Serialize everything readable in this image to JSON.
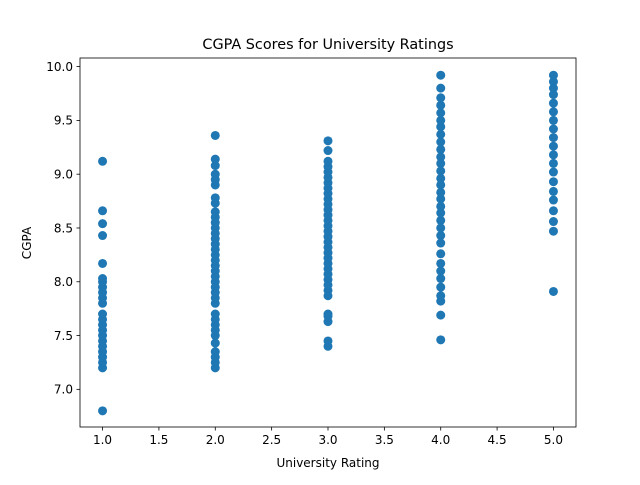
{
  "chart_data": {
    "type": "scatter",
    "title": "CGPA Scores for University Ratings",
    "xlabel": "University Rating",
    "ylabel": "CGPA",
    "xlim": [
      0.8,
      5.2
    ],
    "ylim": [
      6.65,
      10.08
    ],
    "xticks": [
      1.0,
      1.5,
      2.0,
      2.5,
      3.0,
      3.5,
      4.0,
      4.5,
      5.0
    ],
    "xtick_labels": [
      "1.0",
      "1.5",
      "2.0",
      "2.5",
      "3.0",
      "3.5",
      "4.0",
      "4.5",
      "5.0"
    ],
    "yticks": [
      7.0,
      7.5,
      8.0,
      8.5,
      9.0,
      9.5,
      10.0
    ],
    "ytick_labels": [
      "7.0",
      "7.5",
      "8.0",
      "8.5",
      "9.0",
      "9.5",
      "10.0"
    ],
    "grid": false,
    "legend": false,
    "marker_color": "#1f77b4",
    "series": [
      {
        "points": [
          [
            1,
            6.8
          ],
          [
            1,
            7.2
          ],
          [
            1,
            7.25
          ],
          [
            1,
            7.3
          ],
          [
            1,
            7.35
          ],
          [
            1,
            7.4
          ],
          [
            1,
            7.45
          ],
          [
            1,
            7.5
          ],
          [
            1,
            7.55
          ],
          [
            1,
            7.6
          ],
          [
            1,
            7.65
          ],
          [
            1,
            7.7
          ],
          [
            1,
            7.8
          ],
          [
            1,
            7.85
          ],
          [
            1,
            7.9
          ],
          [
            1,
            7.95
          ],
          [
            1,
            8.0
          ],
          [
            1,
            8.03
          ],
          [
            1,
            8.17
          ],
          [
            1,
            8.43
          ],
          [
            1,
            8.54
          ],
          [
            1,
            8.66
          ],
          [
            1,
            9.12
          ],
          [
            2,
            7.2
          ],
          [
            2,
            7.25
          ],
          [
            2,
            7.3
          ],
          [
            2,
            7.35
          ],
          [
            2,
            7.43
          ],
          [
            2,
            7.5
          ],
          [
            2,
            7.55
          ],
          [
            2,
            7.6
          ],
          [
            2,
            7.65
          ],
          [
            2,
            7.7
          ],
          [
            2,
            7.8
          ],
          [
            2,
            7.85
          ],
          [
            2,
            7.9
          ],
          [
            2,
            7.95
          ],
          [
            2,
            8.0
          ],
          [
            2,
            8.05
          ],
          [
            2,
            8.1
          ],
          [
            2,
            8.15
          ],
          [
            2,
            8.2
          ],
          [
            2,
            8.25
          ],
          [
            2,
            8.3
          ],
          [
            2,
            8.35
          ],
          [
            2,
            8.4
          ],
          [
            2,
            8.45
          ],
          [
            2,
            8.5
          ],
          [
            2,
            8.55
          ],
          [
            2,
            8.6
          ],
          [
            2,
            8.65
          ],
          [
            2,
            8.73
          ],
          [
            2,
            8.78
          ],
          [
            2,
            8.9
          ],
          [
            2,
            8.95
          ],
          [
            2,
            9.0
          ],
          [
            2,
            9.08
          ],
          [
            2,
            9.14
          ],
          [
            2,
            9.36
          ],
          [
            3,
            7.4
          ],
          [
            3,
            7.45
          ],
          [
            3,
            7.63
          ],
          [
            3,
            7.68
          ],
          [
            3,
            7.7
          ],
          [
            3,
            7.87
          ],
          [
            3,
            7.92
          ],
          [
            3,
            7.97
          ],
          [
            3,
            8.02
          ],
          [
            3,
            8.07
          ],
          [
            3,
            8.12
          ],
          [
            3,
            8.17
          ],
          [
            3,
            8.22
          ],
          [
            3,
            8.27
          ],
          [
            3,
            8.32
          ],
          [
            3,
            8.37
          ],
          [
            3,
            8.42
          ],
          [
            3,
            8.47
          ],
          [
            3,
            8.52
          ],
          [
            3,
            8.57
          ],
          [
            3,
            8.62
          ],
          [
            3,
            8.67
          ],
          [
            3,
            8.72
          ],
          [
            3,
            8.77
          ],
          [
            3,
            8.82
          ],
          [
            3,
            8.87
          ],
          [
            3,
            8.92
          ],
          [
            3,
            8.97
          ],
          [
            3,
            9.02
          ],
          [
            3,
            9.07
          ],
          [
            3,
            9.12
          ],
          [
            3,
            9.22
          ],
          [
            3,
            9.31
          ],
          [
            4,
            7.46
          ],
          [
            4,
            7.69
          ],
          [
            4,
            7.82
          ],
          [
            4,
            7.87
          ],
          [
            4,
            7.95
          ],
          [
            4,
            8.03
          ],
          [
            4,
            8.1
          ],
          [
            4,
            8.17
          ],
          [
            4,
            8.26
          ],
          [
            4,
            8.36
          ],
          [
            4,
            8.43
          ],
          [
            4,
            8.5
          ],
          [
            4,
            8.57
          ],
          [
            4,
            8.64
          ],
          [
            4,
            8.7
          ],
          [
            4,
            8.77
          ],
          [
            4,
            8.83
          ],
          [
            4,
            8.9
          ],
          [
            4,
            8.96
          ],
          [
            4,
            9.03
          ],
          [
            4,
            9.1
          ],
          [
            4,
            9.16
          ],
          [
            4,
            9.23
          ],
          [
            4,
            9.3
          ],
          [
            4,
            9.37
          ],
          [
            4,
            9.44
          ],
          [
            4,
            9.5
          ],
          [
            4,
            9.57
          ],
          [
            4,
            9.64
          ],
          [
            4,
            9.71
          ],
          [
            4,
            9.8
          ],
          [
            4,
            9.92
          ],
          [
            5,
            7.91
          ],
          [
            5,
            8.47
          ],
          [
            5,
            8.56
          ],
          [
            5,
            8.66
          ],
          [
            5,
            8.76
          ],
          [
            5,
            8.84
          ],
          [
            5,
            8.93
          ],
          [
            5,
            9.02
          ],
          [
            5,
            9.1
          ],
          [
            5,
            9.18
          ],
          [
            5,
            9.26
          ],
          [
            5,
            9.34
          ],
          [
            5,
            9.42
          ],
          [
            5,
            9.5
          ],
          [
            5,
            9.58
          ],
          [
            5,
            9.66
          ],
          [
            5,
            9.74
          ],
          [
            5,
            9.8
          ],
          [
            5,
            9.86
          ],
          [
            5,
            9.92
          ]
        ]
      }
    ]
  }
}
